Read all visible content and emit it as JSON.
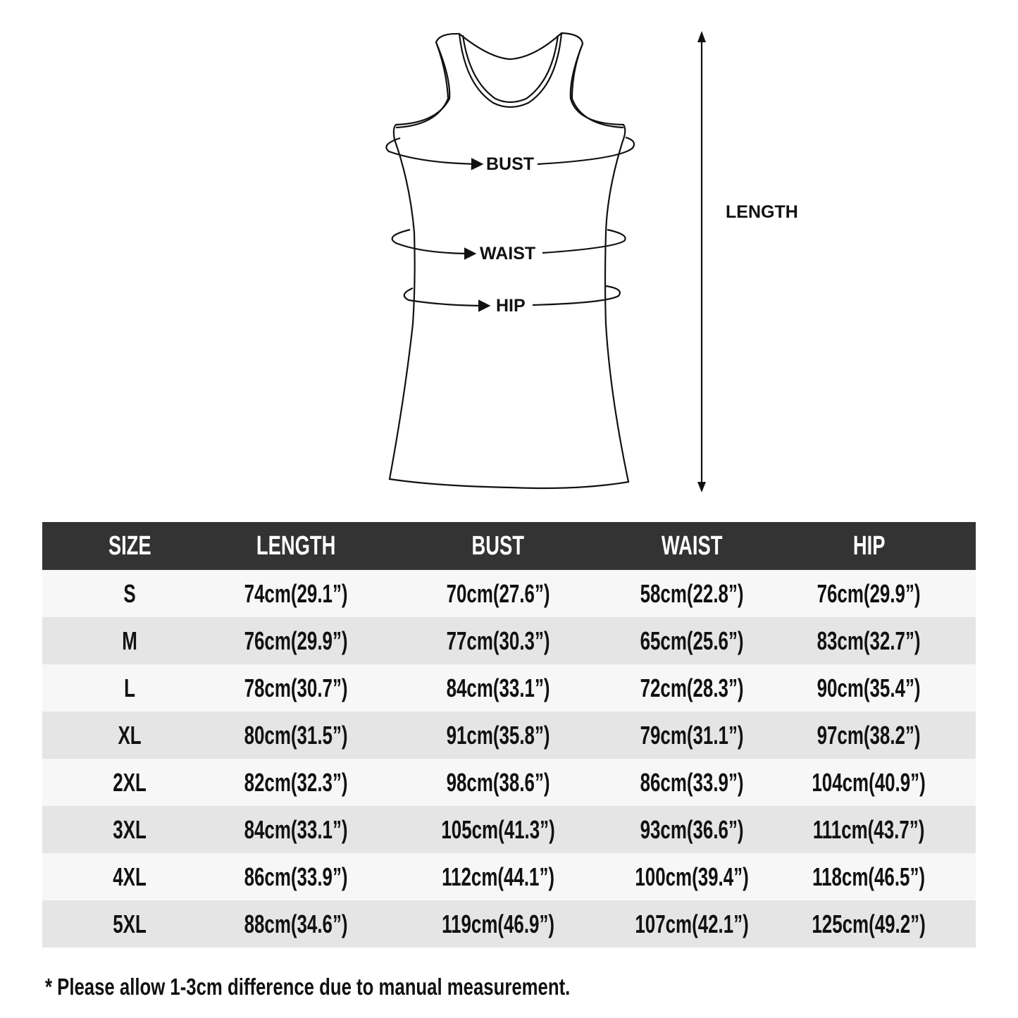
{
  "diagram": {
    "labels": {
      "bust": "BUST",
      "waist": "WAIST",
      "hip": "HIP",
      "length": "LENGTH"
    }
  },
  "table": {
    "headers": [
      "SIZE",
      "LENGTH",
      "BUST",
      "WAIST",
      "HIP"
    ],
    "rows": [
      [
        "S",
        "74cm(29.1”)",
        "70cm(27.6”)",
        "58cm(22.8”)",
        "76cm(29.9”)"
      ],
      [
        "M",
        "76cm(29.9”)",
        "77cm(30.3”)",
        "65cm(25.6”)",
        "83cm(32.7”)"
      ],
      [
        "L",
        "78cm(30.7”)",
        "84cm(33.1”)",
        "72cm(28.3”)",
        "90cm(35.4”)"
      ],
      [
        "XL",
        "80cm(31.5”)",
        "91cm(35.8”)",
        "79cm(31.1”)",
        "97cm(38.2”)"
      ],
      [
        "2XL",
        "82cm(32.3”)",
        "98cm(38.6”)",
        "86cm(33.9”)",
        "104cm(40.9”)"
      ],
      [
        "3XL",
        "84cm(33.1”)",
        "105cm(41.3”)",
        "93cm(36.6”)",
        "111cm(43.7”)"
      ],
      [
        "4XL",
        "86cm(33.9”)",
        "112cm(44.1”)",
        "100cm(39.4”)",
        "118cm(46.5”)"
      ],
      [
        "5XL",
        "88cm(34.6”)",
        "119cm(46.9”)",
        "107cm(42.1”)",
        "125cm(49.2”)"
      ]
    ],
    "colors": {
      "header_bg": "#333333",
      "row_light": "#f7f7f7",
      "row_dark": "#e5e5e5"
    }
  },
  "note": "* Please allow 1-3cm difference due to manual measurement."
}
